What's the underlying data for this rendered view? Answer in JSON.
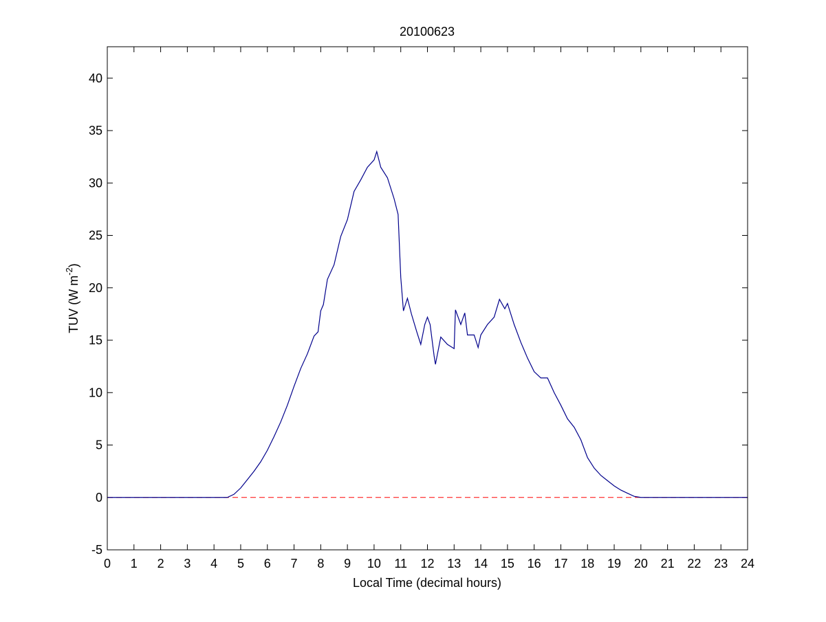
{
  "chart_data": {
    "type": "line",
    "title": "20100623",
    "xlabel": "Local Time (decimal hours)",
    "ylabel": {
      "text": "TUV (W m",
      "superscript": "-2",
      "suffix": ")"
    },
    "xlim": [
      0,
      24
    ],
    "xticks": [
      0,
      1,
      2,
      3,
      4,
      5,
      6,
      7,
      8,
      9,
      10,
      11,
      12,
      13,
      14,
      15,
      16,
      17,
      18,
      19,
      20,
      21,
      22,
      23,
      24
    ],
    "ylim": [
      -5,
      43
    ],
    "yticks": [
      -5,
      0,
      5,
      10,
      15,
      20,
      25,
      30,
      35,
      40
    ],
    "reference_line": {
      "value": 0,
      "color": "#ff0000"
    },
    "series": [
      {
        "color": "#00008b",
        "x": [
          0,
          4.5,
          4.75,
          5,
          5.25,
          5.5,
          5.75,
          6,
          6.25,
          6.5,
          6.75,
          7,
          7.25,
          7.5,
          7.75,
          7.9,
          8,
          8.1,
          8.25,
          8.5,
          8.75,
          9,
          9.25,
          9.5,
          9.75,
          10,
          10.1,
          10.25,
          10.5,
          10.75,
          10.9,
          11,
          11.1,
          11.25,
          11.4,
          11.6,
          11.75,
          11.9,
          12,
          12.1,
          12.25,
          12.3,
          12.5,
          12.75,
          13,
          13.05,
          13.25,
          13.4,
          13.5,
          13.75,
          13.9,
          14,
          14.25,
          14.5,
          14.7,
          14.9,
          15,
          15.25,
          15.5,
          15.75,
          16,
          16.25,
          16.5,
          16.75,
          17,
          17.25,
          17.5,
          17.75,
          18,
          18.25,
          18.5,
          18.75,
          19,
          19.25,
          19.5,
          19.75,
          20,
          24
        ],
        "values": [
          0,
          0,
          0.3,
          0.9,
          1.7,
          2.5,
          3.4,
          4.5,
          5.8,
          7.2,
          8.8,
          10.6,
          12.3,
          13.7,
          15.4,
          15.8,
          17.8,
          18.4,
          20.8,
          22.2,
          24.9,
          26.5,
          29.2,
          30.3,
          31.5,
          32.2,
          33.0,
          31.5,
          30.5,
          28.5,
          27,
          21,
          17.8,
          19,
          17.5,
          15.8,
          14.6,
          16.5,
          17.2,
          16.5,
          13.5,
          12.7,
          15.3,
          14.6,
          14.2,
          17.9,
          16.5,
          17.6,
          15.5,
          15.5,
          14.3,
          15.5,
          16.5,
          17.2,
          18.9,
          18.0,
          18.5,
          16.5,
          14.8,
          13.3,
          12.0,
          11.4,
          11.4,
          10.0,
          8.8,
          7.5,
          6.7,
          5.5,
          3.8,
          2.8,
          2.1,
          1.6,
          1.1,
          0.7,
          0.4,
          0.1,
          0,
          0
        ]
      }
    ]
  }
}
